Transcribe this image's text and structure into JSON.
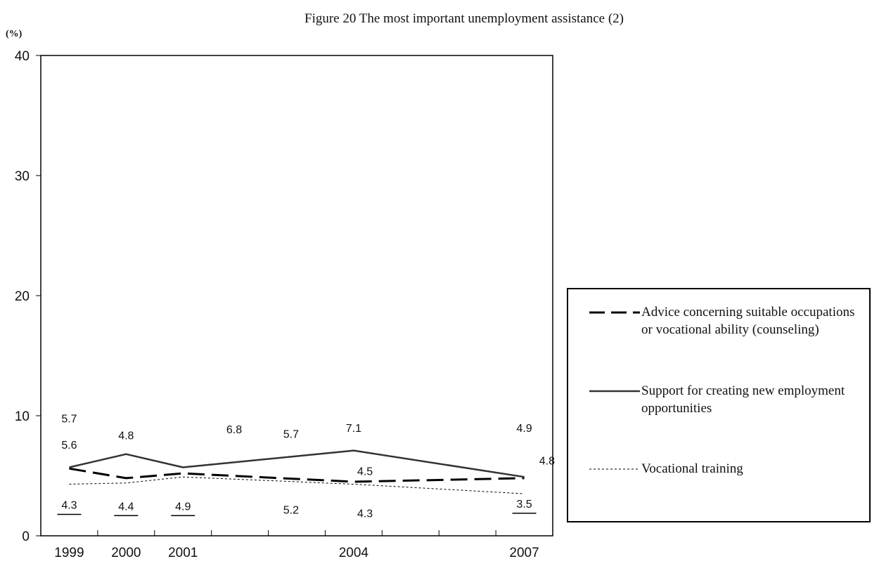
{
  "chart_data": {
    "type": "line",
    "title": "Figure 20 The most important unemployment assistance (2)",
    "ylabel": "(%)",
    "xlabel": "",
    "ylim": [
      0,
      40
    ],
    "yticks": [
      0,
      10,
      20,
      30,
      40
    ],
    "x": [
      1999,
      2000,
      2001,
      2004,
      2007
    ],
    "series": [
      {
        "name": "Advice concerning suitable occupations or vocational ability (counseling)",
        "values": [
          5.6,
          4.8,
          5.2,
          4.5,
          4.8
        ],
        "color": "#000000",
        "style": "dashed"
      },
      {
        "name": "Support for creating new employment opportunities",
        "values": [
          5.7,
          6.8,
          5.7,
          7.1,
          4.9
        ],
        "color": "#333333",
        "style": "solid"
      },
      {
        "name": "Vocational training",
        "values": [
          4.3,
          4.4,
          4.9,
          4.3,
          3.5
        ],
        "color": "#000000",
        "style": "dotted"
      }
    ],
    "data_labels": [
      {
        "text": "5.7",
        "x": 1999,
        "y": 9.8
      },
      {
        "text": "5.6",
        "x": 1999,
        "y": 7.6
      },
      {
        "text": "4.3",
        "x": 1999,
        "y": 2.6,
        "underline": true
      },
      {
        "text": "4.8",
        "x": 2000,
        "y": 8.4
      },
      {
        "text": "4.4",
        "x": 2000,
        "y": 2.5,
        "underline": true
      },
      {
        "text": "6.8",
        "x": 2001.9,
        "y": 8.9
      },
      {
        "text": "4.9",
        "x": 2001,
        "y": 2.5,
        "underline": true
      },
      {
        "text": "5.7",
        "x": 2002.9,
        "y": 8.5
      },
      {
        "text": "5.2",
        "x": 2002.9,
        "y": 2.2
      },
      {
        "text": "7.1",
        "x": 2004,
        "y": 9.0
      },
      {
        "text": "4.5",
        "x": 2004.2,
        "y": 5.4
      },
      {
        "text": "4.3",
        "x": 2004.2,
        "y": 1.9
      },
      {
        "text": "4.9",
        "x": 2007,
        "y": 9.0
      },
      {
        "text": "4.8",
        "x": 2007.4,
        "y": 6.3
      },
      {
        "text": "3.5",
        "x": 2007,
        "y": 2.7,
        "underline": true
      }
    ],
    "legend_position": "right",
    "grid": false
  }
}
